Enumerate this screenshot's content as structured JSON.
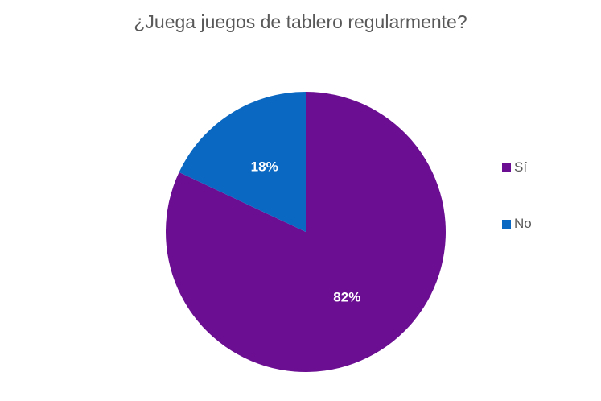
{
  "chart_data": {
    "type": "pie",
    "title": "¿Juega juegos de tablero regularmente?",
    "categories": [
      "Sí",
      "No"
    ],
    "values": [
      82,
      18
    ],
    "data_labels": [
      "82%",
      "18%"
    ],
    "colors": [
      "#6B0E92",
      "#0A68C2"
    ],
    "start_angle_deg": 0,
    "direction": "clockwise",
    "legend_position": "right"
  }
}
